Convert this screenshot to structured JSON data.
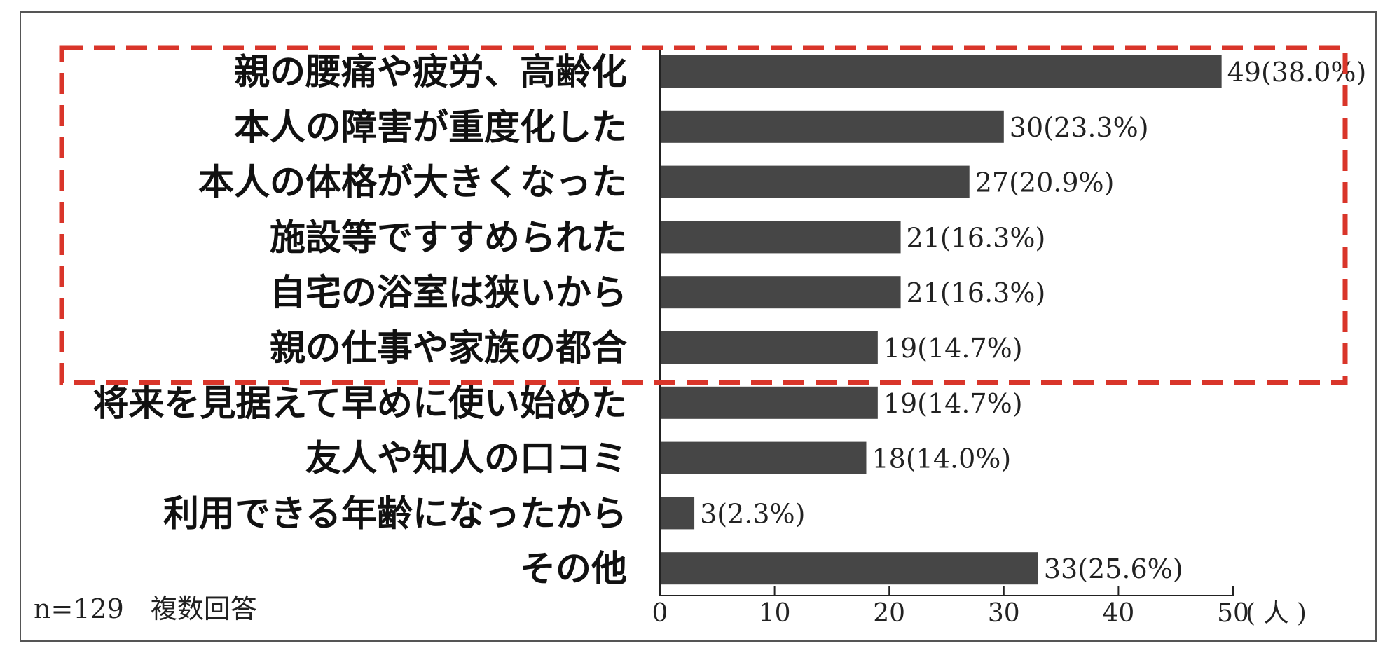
{
  "chart_data": {
    "type": "bar",
    "orientation": "horizontal",
    "categories": [
      "親の腰痛や疲労、高齢化",
      "本人の障害が重度化した",
      "本人の体格が大きくなった",
      "施設等ですすめられた",
      "自宅の浴室は狭いから",
      "親の仕事や家族の都合",
      "将来を見据えて早めに使い始めた",
      "友人や知人の口コミ",
      "利用できる年齢になったから",
      "その他"
    ],
    "values": [
      49,
      30,
      27,
      21,
      21,
      19,
      19,
      18,
      3,
      33
    ],
    "value_labels": [
      "49(38.0%)",
      "30(23.3%)",
      "27(20.9%)",
      "21(16.3%)",
      "21(16.3%)",
      "19(14.7%)",
      "19(14.7%)",
      "18(14.0%)",
      "3(2.3%)",
      "33(25.6%)"
    ],
    "x_ticks": [
      "0",
      "10",
      "20",
      "30",
      "40",
      "50"
    ],
    "x_unit": "( 人 )",
    "xlim": [
      0,
      50
    ],
    "note": "n=129　複数回答",
    "highlighted_categories": [
      0,
      1,
      2,
      3,
      4,
      5
    ],
    "grid": false,
    "colors": {
      "bar": "#464646",
      "highlight_border": "#d9352a",
      "axis": "#222222"
    }
  }
}
